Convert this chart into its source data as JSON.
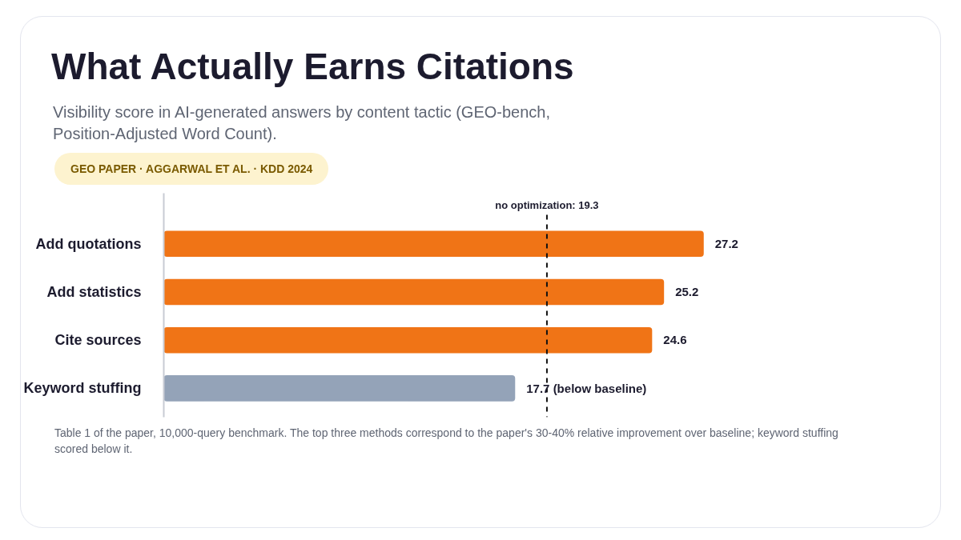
{
  "chart_data": {
    "type": "bar",
    "orientation": "horizontal",
    "title": "What Actually Earns Citations",
    "subtitle": "Visibility score in AI-generated answers by content tactic (GEO-bench, Position-Adjusted Word Count).",
    "categories": [
      "Add quotations",
      "Add statistics",
      "Cite sources",
      "Keyword stuffing"
    ],
    "values": [
      27.2,
      25.2,
      24.6,
      17.7
    ],
    "colors": [
      "#f07416",
      "#f07416",
      "#f07416",
      "#94a3b8"
    ],
    "value_labels": [
      "27.2",
      "25.2",
      "24.6",
      "17.7 (below baseline)"
    ],
    "ref_lines": [
      {
        "axis": "x",
        "value": 19.3,
        "label": "no optimization: 19.3",
        "color": "#111111",
        "line_style": "dashed"
      }
    ],
    "annotations": [
      "GEO PAPER · AGGARWAL ET AL. · KDD 2024",
      "Table 1 of the paper, 10,000-query benchmark. The top three methods correspond to the paper's 30-40% relative improvement over baseline; keyword stuffing scored below it."
    ],
    "grid": false
  }
}
